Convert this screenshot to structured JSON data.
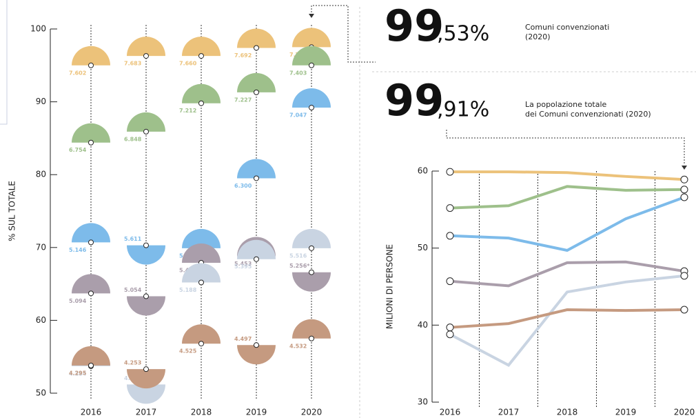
{
  "stats": [
    {
      "big": "99",
      "small": ",53%",
      "label": [
        "Comuni convenzionati",
        "(2020)"
      ]
    },
    {
      "big": "99",
      "small": ",91%",
      "label": [
        "La popolazione totale",
        "dei Comuni convenzionati (2020)"
      ]
    }
  ],
  "chart_data": [
    {
      "type": "semicircle",
      "ylabel": "% SUL TOTALE",
      "categories": [
        "2016",
        "2017",
        "2018",
        "2019",
        "2020"
      ],
      "ylim": [
        50,
        100
      ],
      "yticks": [
        50,
        60,
        70,
        80,
        90,
        100
      ],
      "series": [
        {
          "color": "#ecc27a",
          "values": [
            95.0,
            96.3,
            96.3,
            97.4,
            97.5
          ],
          "value_labels": [
            "7.602",
            "7.683",
            "7.660",
            "7.692",
            "7.704"
          ],
          "halves": [
            "up",
            "up",
            "up",
            "up",
            "up"
          ]
        },
        {
          "color": "#9ec08b",
          "values": [
            84.4,
            85.9,
            89.8,
            91.3,
            95.0
          ],
          "value_labels": [
            "6.754",
            "6.848",
            "7.212",
            "7.227",
            "7.403"
          ],
          "halves": [
            "up",
            "up",
            "up",
            "up",
            "up"
          ]
        },
        {
          "color": "#7dbbea",
          "values": [
            70.7,
            70.3,
            69.9,
            79.5,
            89.2
          ],
          "value_labels": [
            "5.146",
            "5.611",
            "5.551",
            "6.300",
            "7.047"
          ],
          "halves": [
            "up",
            "down",
            "up",
            "up",
            "up"
          ]
        },
        {
          "color": "#aa9eab",
          "values": [
            63.7,
            63.3,
            67.9,
            68.8,
            66.6
          ],
          "value_labels": [
            "5.094",
            "5.054",
            "5.400",
            "5.453",
            "5.256*"
          ],
          "halves": [
            "up",
            "down",
            "up",
            "up",
            "down"
          ]
        },
        {
          "color": "#c9d4e2",
          "values": [
            53.7,
            51.2,
            65.2,
            68.4,
            69.9
          ],
          "value_labels": [
            "4.284",
            "4.092",
            "5.188",
            "5.395",
            "5.516"
          ],
          "halves": [
            "up",
            "down",
            "up",
            "up",
            "up"
          ]
        },
        {
          "color": "#c59a80",
          "values": [
            53.8,
            53.3,
            56.8,
            56.6,
            57.5
          ],
          "value_labels": [
            "4.295",
            "4.253",
            "4.525",
            "4.497",
            "4.532"
          ],
          "halves": [
            "up",
            "down",
            "up",
            "down",
            "up"
          ]
        }
      ]
    },
    {
      "type": "line",
      "ylabel": "MILIONI DI PERSONE",
      "categories": [
        "2016",
        "2017",
        "2018",
        "2019",
        "2020"
      ],
      "ylim": [
        30,
        60
      ],
      "yticks": [
        30,
        40,
        50,
        60
      ],
      "series": [
        {
          "color": "#ecc27a",
          "values": [
            59.9,
            59.9,
            59.8,
            59.3,
            58.9
          ]
        },
        {
          "color": "#9ec08b",
          "values": [
            55.2,
            55.5,
            58.0,
            57.5,
            57.6
          ]
        },
        {
          "color": "#7dbbea",
          "values": [
            51.6,
            51.3,
            49.7,
            53.8,
            56.6
          ]
        },
        {
          "color": "#aa9eab",
          "values": [
            45.7,
            45.1,
            48.1,
            48.2,
            47.0
          ]
        },
        {
          "color": "#c9d4e2",
          "values": [
            38.8,
            34.8,
            44.3,
            45.6,
            46.4
          ]
        },
        {
          "color": "#c59a80",
          "values": [
            39.7,
            40.2,
            42.0,
            41.9,
            42.0
          ]
        }
      ]
    }
  ]
}
